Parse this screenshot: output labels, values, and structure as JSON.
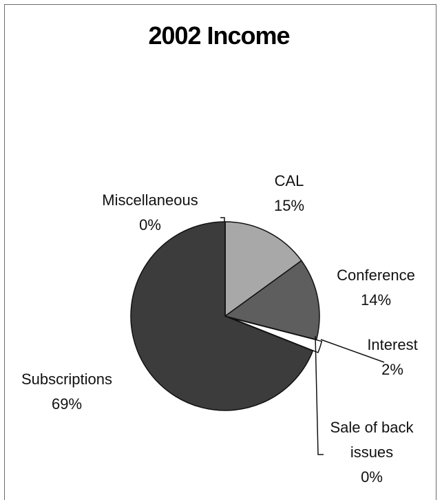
{
  "chart_data": {
    "type": "pie",
    "title": "2002 Income",
    "slices": [
      {
        "label": "CAL",
        "label_lines": [
          "CAL"
        ],
        "value": 15,
        "value_label": "15%",
        "color": "#a8a8a8"
      },
      {
        "label": "Conference",
        "label_lines": [
          "Conference"
        ],
        "value": 14,
        "value_label": "14%",
        "color": "#5e5e5e"
      },
      {
        "label": "Interest",
        "label_lines": [
          "Interest"
        ],
        "value": 2,
        "value_label": "2%",
        "color": "#ffffff"
      },
      {
        "label": "Sale of back issues",
        "label_lines": [
          "Sale of back",
          "issues"
        ],
        "value": 0,
        "value_label": "0%",
        "color": "#ffffff"
      },
      {
        "label": "Subscriptions",
        "label_lines": [
          "Subscriptions"
        ],
        "value": 69,
        "value_label": "69%",
        "color": "#3c3c3c"
      },
      {
        "label": "Miscellaneous",
        "label_lines": [
          "Miscellaneous"
        ],
        "value": 0,
        "value_label": "0%",
        "color": "#ffffff"
      }
    ],
    "legend": "none",
    "start_angle": "12 o'clock",
    "direction": "clockwise"
  }
}
